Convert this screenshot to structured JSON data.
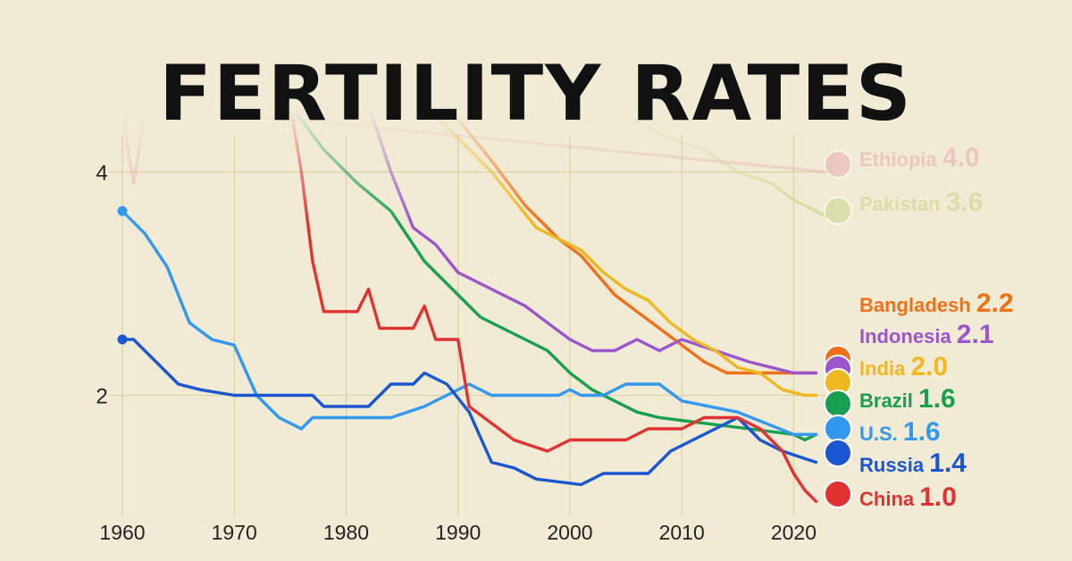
{
  "title": "FERTILITY RATES",
  "colors": {
    "background": "#f1ebd5",
    "grid": "#ddd3a6",
    "title": "#111111"
  },
  "chart_data": {
    "type": "line",
    "title": "FERTILITY RATES",
    "xlabel": "",
    "ylabel": "",
    "xlim": [
      1960,
      2023
    ],
    "ylim": [
      0.9,
      4.5
    ],
    "x_ticks": [
      1960,
      1970,
      1980,
      1990,
      2000,
      2010,
      2020
    ],
    "y_ticks": [
      2,
      4
    ],
    "grid": true,
    "legend": "right-end labels",
    "series": [
      {
        "name": "Ethiopia",
        "value_label": "4.0",
        "color": "#e8aeae",
        "faded": true,
        "flag_icon": "ethiopia-flag-icon",
        "points": [
          [
            1960,
            4.6
          ],
          [
            1960.5,
            4.2
          ],
          [
            1961,
            3.9
          ],
          [
            1961.5,
            4.2
          ],
          [
            1962,
            4.6
          ],
          [
            2023,
            4.0
          ]
        ]
      },
      {
        "name": "Pakistan",
        "value_label": "3.6",
        "color": "#c7d68a",
        "faded": true,
        "flag_icon": "pakistan-flag-icon",
        "points": [
          [
            1996,
            4.6
          ],
          [
            2000,
            4.55
          ],
          [
            2003,
            4.5
          ],
          [
            2006,
            4.45
          ],
          [
            2009,
            4.3
          ],
          [
            2012,
            4.2
          ],
          [
            2015,
            4.0
          ],
          [
            2018,
            3.9
          ],
          [
            2020,
            3.75
          ],
          [
            2022,
            3.65
          ],
          [
            2023,
            3.6
          ]
        ]
      },
      {
        "name": "Bangladesh",
        "value_label": "2.2",
        "color": "#f07018",
        "faded": false,
        "flag_icon": "bangladesh-flag-icon",
        "points": [
          [
            1989,
            4.6
          ],
          [
            1993,
            4.1
          ],
          [
            1996,
            3.7
          ],
          [
            1999,
            3.4
          ],
          [
            2001,
            3.25
          ],
          [
            2004,
            2.9
          ],
          [
            2006,
            2.75
          ],
          [
            2008,
            2.6
          ],
          [
            2010,
            2.45
          ],
          [
            2012,
            2.3
          ],
          [
            2014,
            2.2
          ],
          [
            2017,
            2.2
          ],
          [
            2020,
            2.2
          ],
          [
            2022,
            2.2
          ]
        ]
      },
      {
        "name": "Indonesia",
        "value_label": "2.1",
        "color": "#9b56cc",
        "faded": false,
        "flag_icon": "indonesia-flag-icon",
        "points": [
          [
            1982,
            4.6
          ],
          [
            1984,
            4.0
          ],
          [
            1986,
            3.5
          ],
          [
            1988,
            3.35
          ],
          [
            1990,
            3.1
          ],
          [
            1992,
            3.0
          ],
          [
            1994,
            2.9
          ],
          [
            1996,
            2.8
          ],
          [
            1998,
            2.65
          ],
          [
            2000,
            2.5
          ],
          [
            2002,
            2.4
          ],
          [
            2004,
            2.4
          ],
          [
            2006,
            2.5
          ],
          [
            2008,
            2.4
          ],
          [
            2010,
            2.5
          ],
          [
            2013,
            2.4
          ],
          [
            2016,
            2.3
          ],
          [
            2018,
            2.25
          ],
          [
            2020,
            2.2
          ],
          [
            2022,
            2.2
          ]
        ]
      },
      {
        "name": "India",
        "value_label": "2.0",
        "color": "#f0b820",
        "faded": false,
        "flag_icon": "india-flag-icon",
        "points": [
          [
            1987,
            4.6
          ],
          [
            1990,
            4.3
          ],
          [
            1993,
            4.0
          ],
          [
            1995,
            3.75
          ],
          [
            1997,
            3.5
          ],
          [
            1999,
            3.4
          ],
          [
            2001,
            3.3
          ],
          [
            2003,
            3.1
          ],
          [
            2005,
            2.95
          ],
          [
            2007,
            2.85
          ],
          [
            2009,
            2.65
          ],
          [
            2011,
            2.5
          ],
          [
            2013,
            2.4
          ],
          [
            2015,
            2.25
          ],
          [
            2017,
            2.2
          ],
          [
            2019,
            2.05
          ],
          [
            2021,
            2.0
          ],
          [
            2022,
            2.0
          ]
        ]
      },
      {
        "name": "Brazil",
        "value_label": "1.6",
        "color": "#18a050",
        "faded": false,
        "flag_icon": "brazil-flag-icon",
        "points": [
          [
            1975,
            4.6
          ],
          [
            1978,
            4.2
          ],
          [
            1981,
            3.9
          ],
          [
            1984,
            3.65
          ],
          [
            1987,
            3.2
          ],
          [
            1990,
            2.9
          ],
          [
            1992,
            2.7
          ],
          [
            1994,
            2.6
          ],
          [
            1996,
            2.5
          ],
          [
            1998,
            2.4
          ],
          [
            2000,
            2.2
          ],
          [
            2002,
            2.05
          ],
          [
            2004,
            1.95
          ],
          [
            2006,
            1.85
          ],
          [
            2008,
            1.8
          ],
          [
            2012,
            1.75
          ],
          [
            2016,
            1.7
          ],
          [
            2020,
            1.65
          ],
          [
            2021,
            1.6
          ],
          [
            2022,
            1.65
          ]
        ]
      },
      {
        "name": "U.S.",
        "value_label": "1.6",
        "color": "#3399ee",
        "faded": false,
        "flag_icon": "us-flag-icon",
        "points": [
          [
            1960,
            3.65
          ],
          [
            1962,
            3.45
          ],
          [
            1963,
            3.3
          ],
          [
            1964,
            3.15
          ],
          [
            1965,
            2.9
          ],
          [
            1966,
            2.65
          ],
          [
            1968,
            2.5
          ],
          [
            1970,
            2.45
          ],
          [
            1972,
            2.0
          ],
          [
            1974,
            1.8
          ],
          [
            1976,
            1.7
          ],
          [
            1977,
            1.8
          ],
          [
            1980,
            1.8
          ],
          [
            1984,
            1.8
          ],
          [
            1987,
            1.9
          ],
          [
            1989,
            2.0
          ],
          [
            1991,
            2.1
          ],
          [
            1993,
            2.0
          ],
          [
            1999,
            2.0
          ],
          [
            2000,
            2.05
          ],
          [
            2001,
            2.0
          ],
          [
            2003,
            2.0
          ],
          [
            2005,
            2.1
          ],
          [
            2008,
            2.1
          ],
          [
            2010,
            1.95
          ],
          [
            2015,
            1.85
          ],
          [
            2020,
            1.65
          ],
          [
            2022,
            1.65
          ]
        ]
      },
      {
        "name": "Russia",
        "value_label": "1.4",
        "color": "#1a56d0",
        "faded": false,
        "flag_icon": "russia-flag-icon",
        "points": [
          [
            1960,
            2.5
          ],
          [
            1961,
            2.5
          ],
          [
            1963,
            2.3
          ],
          [
            1965,
            2.1
          ],
          [
            1967,
            2.05
          ],
          [
            1970,
            2.0
          ],
          [
            1977,
            2.0
          ],
          [
            1978,
            1.9
          ],
          [
            1982,
            1.9
          ],
          [
            1984,
            2.1
          ],
          [
            1986,
            2.1
          ],
          [
            1987,
            2.2
          ],
          [
            1989,
            2.1
          ],
          [
            1991,
            1.85
          ],
          [
            1993,
            1.4
          ],
          [
            1995,
            1.35
          ],
          [
            1997,
            1.25
          ],
          [
            2001,
            1.2
          ],
          [
            2003,
            1.3
          ],
          [
            2007,
            1.3
          ],
          [
            2009,
            1.5
          ],
          [
            2011,
            1.6
          ],
          [
            2013,
            1.7
          ],
          [
            2015,
            1.8
          ],
          [
            2017,
            1.6
          ],
          [
            2019,
            1.5
          ],
          [
            2022,
            1.4
          ]
        ]
      },
      {
        "name": "China",
        "value_label": "1.0",
        "color": "#e03232",
        "faded": false,
        "flag_icon": "china-flag-icon",
        "points": [
          [
            1975,
            4.6
          ],
          [
            1976,
            4.0
          ],
          [
            1977,
            3.2
          ],
          [
            1978,
            2.75
          ],
          [
            1981,
            2.75
          ],
          [
            1982,
            2.95
          ],
          [
            1983,
            2.6
          ],
          [
            1986,
            2.6
          ],
          [
            1987,
            2.8
          ],
          [
            1988,
            2.5
          ],
          [
            1990,
            2.5
          ],
          [
            1991,
            1.9
          ],
          [
            1993,
            1.75
          ],
          [
            1995,
            1.6
          ],
          [
            1998,
            1.5
          ],
          [
            2000,
            1.6
          ],
          [
            2005,
            1.6
          ],
          [
            2007,
            1.7
          ],
          [
            2010,
            1.7
          ],
          [
            2012,
            1.8
          ],
          [
            2015,
            1.8
          ],
          [
            2017,
            1.7
          ],
          [
            2019,
            1.5
          ],
          [
            2020,
            1.3
          ],
          [
            2021,
            1.15
          ],
          [
            2022,
            1.05
          ]
        ]
      }
    ]
  }
}
